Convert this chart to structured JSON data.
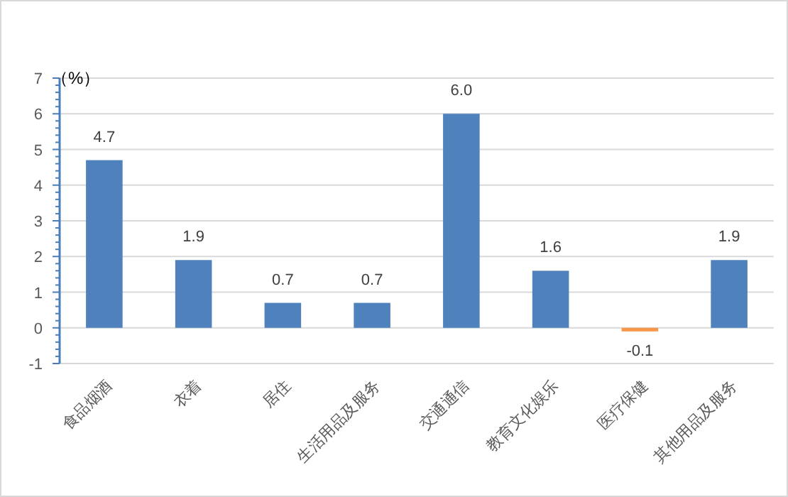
{
  "chart_data": {
    "type": "bar",
    "ylabel": "（%）",
    "categories": [
      "食品烟酒",
      "衣着",
      "居住",
      "生活用品及服务",
      "交通通信",
      "教育文化娱乐",
      "医疗保健",
      "其他用品及服务"
    ],
    "values": [
      4.7,
      1.9,
      0.7,
      0.7,
      6.0,
      1.6,
      -0.1,
      1.9
    ],
    "colors": [
      "#4f81bd",
      "#4f81bd",
      "#4f81bd",
      "#4f81bd",
      "#4f81bd",
      "#4f81bd",
      "#f79646",
      "#4f81bd"
    ],
    "ylim": [
      -1,
      7
    ],
    "yticks": [
      -1,
      0,
      1,
      2,
      3,
      4,
      5,
      6,
      7
    ],
    "grid": "y",
    "value_labels": [
      "4.7",
      "1.9",
      "0.7",
      "0.7",
      "6.0",
      "1.6",
      "-0.1",
      "1.9"
    ]
  }
}
